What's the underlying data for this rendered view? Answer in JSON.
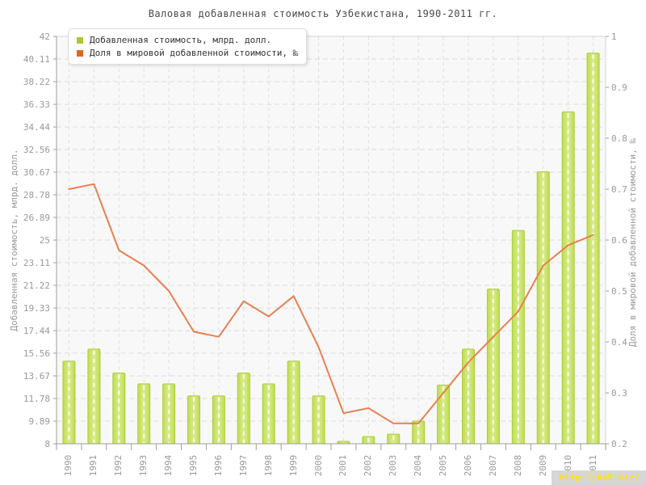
{
  "page": {
    "title": "Валовая добавленная стоимость Узбекистана, 1990-2011 гг.",
    "watermark": "http://be5.biz/"
  },
  "legend": {
    "items": [
      {
        "label": "Добавленная стоимость, млрд. долл.",
        "color": "#a9c92b"
      },
      {
        "label": "Доля в мировой добавленной стоимости, ‰",
        "color": "#e0661f"
      }
    ]
  },
  "chart_data": {
    "type": "bar+line",
    "title": "Валовая добавленная стоимость Узбекистана, 1990-2011 гг.",
    "categories": [
      "1990",
      "1991",
      "1992",
      "1993",
      "1994",
      "1995",
      "1996",
      "1997",
      "1998",
      "1999",
      "2000",
      "2001",
      "2002",
      "2003",
      "2004",
      "2005",
      "2006",
      "2007",
      "2008",
      "2009",
      "2010",
      "2011"
    ],
    "series": [
      {
        "name": "Добавленная стоимость, млрд. долл.",
        "type": "bar",
        "axis": "left",
        "color": "#bedd4f",
        "color_light": "#d9ec90",
        "edge_color": "#abcd37",
        "values": [
          14.9,
          15.9,
          13.9,
          13.0,
          13.0,
          12.0,
          12.0,
          13.9,
          13.0,
          14.9,
          12.0,
          8.2,
          8.6,
          8.8,
          9.9,
          12.9,
          15.9,
          20.9,
          25.8,
          30.7,
          35.7,
          40.6
        ]
      },
      {
        "name": "Доля в мировой добавленной стоимости, ‰",
        "type": "line",
        "axis": "right",
        "color": "#e87f52",
        "values": [
          0.7,
          0.71,
          0.58,
          0.55,
          0.5,
          0.42,
          0.41,
          0.48,
          0.45,
          0.49,
          0.39,
          0.26,
          0.27,
          0.24,
          0.24,
          0.3,
          0.36,
          0.41,
          0.46,
          0.55,
          0.59,
          0.61
        ]
      }
    ],
    "axes": {
      "left": {
        "label": "Добавленная стоимость, млрд. долл.",
        "min": 8,
        "max": 42,
        "ticks": [
          42,
          40.11,
          38.22,
          36.33,
          34.44,
          32.56,
          30.67,
          28.78,
          26.89,
          25,
          23.11,
          21.22,
          19.33,
          17.44,
          15.56,
          13.67,
          11.78,
          9.89,
          8
        ]
      },
      "right": {
        "label": "Доля в мировой добавленной стоимости, ‰",
        "min": 0.2,
        "max": 1,
        "ticks": [
          1,
          0.9,
          0.8,
          0.7,
          0.6,
          0.5,
          0.4,
          0.3,
          0.2
        ]
      }
    },
    "grid": true,
    "legend_position": "top-left",
    "colors": {
      "plot_background": "#f8f8f8",
      "gridline": "#dcdcdc",
      "axis_line": "#9e9e9e",
      "plot_border": "#d4d4d4",
      "tick_label": "#999999"
    }
  }
}
